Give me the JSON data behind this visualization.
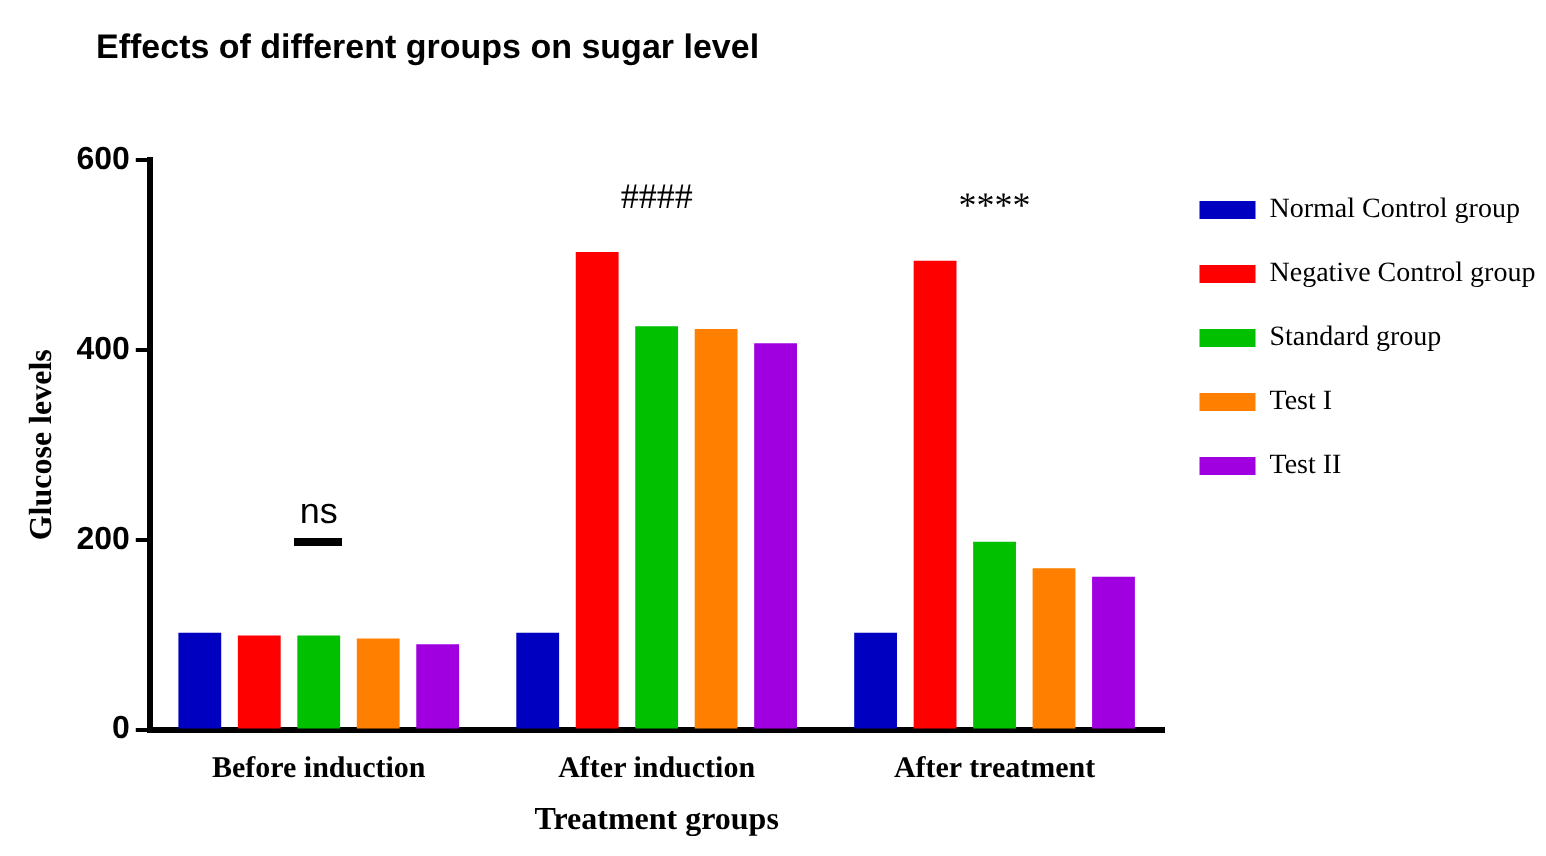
{
  "chart_data": {
    "type": "bar",
    "title": "Effects of different groups on sugar level",
    "xlabel": "Treatment groups",
    "ylabel": "Glucose levels",
    "categories": [
      "Before induction",
      "After induction",
      "After treatment"
    ],
    "series": [
      {
        "name": "Normal Control group",
        "color": "#0000c0",
        "values": [
          102,
          102,
          102
        ]
      },
      {
        "name": "Negative Control group",
        "color": "#ff0000",
        "values": [
          99,
          503,
          494
        ]
      },
      {
        "name": "Standard group",
        "color": "#00c000",
        "values": [
          99,
          425,
          198
        ]
      },
      {
        "name": "Test I",
        "color": "#ff8000",
        "values": [
          96,
          422,
          170
        ]
      },
      {
        "name": "Test II",
        "color": "#a000e0",
        "values": [
          90,
          407,
          161
        ]
      }
    ],
    "ylim": [
      0,
      600
    ],
    "yticks": [
      0,
      200,
      400,
      600
    ],
    "grid": false,
    "legend": "right",
    "annotations": [
      "ns",
      "####",
      "****"
    ]
  }
}
